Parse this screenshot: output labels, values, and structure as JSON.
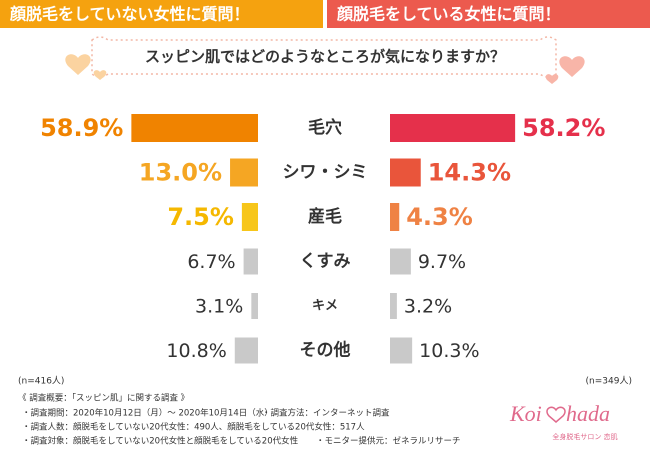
{
  "chart_data": {
    "type": "butterfly-bar",
    "title": "スッピン肌ではどのようなところが気になりますか？",
    "categories": [
      "毛穴",
      "シワ・シミ",
      "産毛",
      "くすみ",
      "キメ",
      "その他"
    ],
    "series": [
      {
        "name": "顔脱毛をしていない女性に質問！",
        "color": "#f5a20f",
        "colors": [
          "#f08300",
          "#f5a623",
          "#f7c61a",
          "#c9c9c9",
          "#c9c9c9",
          "#c9c9c9"
        ],
        "label_colors": [
          "#f08300",
          "#f5a623",
          "#f5b800",
          "#333333",
          "#333333",
          "#333333"
        ],
        "values": [
          58.9,
          13.0,
          7.5,
          6.7,
          3.1,
          10.8
        ],
        "value_labels": [
          "58.9%",
          "13.0%",
          "7.5%",
          "6.7%",
          "3.1%",
          "10.8%"
        ],
        "note": "(n=416人)"
      },
      {
        "name": "顔脱毛をしている女性に質問！",
        "color": "#ec5a4e",
        "colors": [
          "#e5304b",
          "#e9553b",
          "#ef8244",
          "#c9c9c9",
          "#c9c9c9",
          "#c9c9c9"
        ],
        "label_colors": [
          "#e5304b",
          "#e9553b",
          "#ef8244",
          "#333333",
          "#333333",
          "#333333"
        ],
        "values": [
          58.2,
          14.3,
          4.3,
          9.7,
          3.2,
          10.3
        ],
        "value_labels": [
          "58.2%",
          "14.3%",
          "4.3%",
          "9.7%",
          "3.2%",
          "10.3%"
        ],
        "note": "(n=349人)"
      }
    ]
  },
  "footer": {
    "title": "《 調査概要：「スッピン肌」に関する調査 》",
    "items": [
      "・調査期間：2020年10月12日（月）～ 2020年10月14日（水）",
      "・調査方法：インターネット調査",
      "・調査人数：顔脱毛をしていない20代女性：490人、顔脱毛をしている20代女性：517人",
      "・調査対象：顔脱毛をしていない20代女性と顔脱毛をしている20代女性",
      "・モニター提供元：ゼネラルリサーチ"
    ]
  },
  "logo": {
    "left": "Koi",
    "right": "hada",
    "sub": "全身脱毛サロン 恋肌"
  }
}
